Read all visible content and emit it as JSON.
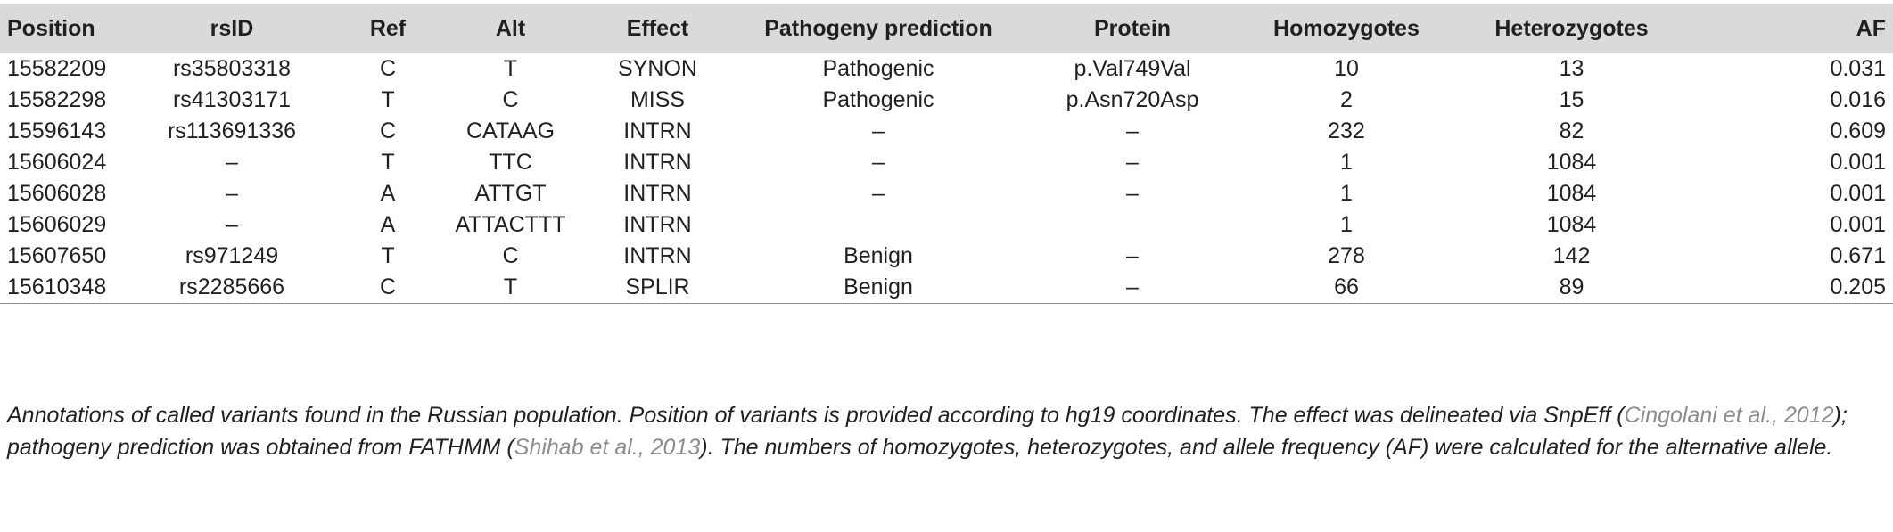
{
  "table": {
    "headers": [
      "Position",
      "rsID",
      "Ref",
      "Alt",
      "Effect",
      "Pathogeny prediction",
      "Protein",
      "Homozygotes",
      "Heterozygotes",
      "AF"
    ],
    "rows": [
      [
        "15582209",
        "rs35803318",
        "C",
        "T",
        "SYNON",
        "Pathogenic",
        "p.Val749Val",
        "10",
        "13",
        "0.031"
      ],
      [
        "15582298",
        "rs41303171",
        "T",
        "C",
        "MISS",
        "Pathogenic",
        "p.Asn720Asp",
        "2",
        "15",
        "0.016"
      ],
      [
        "15596143",
        "rs113691336",
        "C",
        "CATAAG",
        "INTRN",
        "–",
        "–",
        "232",
        "82",
        "0.609"
      ],
      [
        "15606024",
        "–",
        "T",
        "TTC",
        "INTRN",
        "–",
        "–",
        "1",
        "1084",
        "0.001"
      ],
      [
        "15606028",
        "–",
        "A",
        "ATTGT",
        "INTRN",
        "–",
        "–",
        "1",
        "1084",
        "0.001"
      ],
      [
        "15606029",
        "–",
        "A",
        "ATTACTTT",
        "INTRN",
        "",
        "",
        "1",
        "1084",
        "0.001"
      ],
      [
        "15607650",
        "rs971249",
        "T",
        "C",
        "INTRN",
        "Benign",
        "–",
        "278",
        "142",
        "0.671"
      ],
      [
        "15610348",
        "rs2285666",
        "C",
        "T",
        "SPLIR",
        "Benign",
        "–",
        "66",
        "89",
        "0.205"
      ]
    ]
  },
  "caption": {
    "part1": "Annotations of called variants found in the Russian population. Position of variants is provided according to hg19 coordinates. The effect was delineated via SnpEff (",
    "cite1": "Cingolani et al., 2012",
    "part2": "); pathogeny prediction was obtained from FATHMM (",
    "cite2": "Shihab et al., 2013",
    "part3": "). The numbers of homozygotes, heterozygotes, and allele frequency (AF) were calculated for the alternative allele."
  }
}
